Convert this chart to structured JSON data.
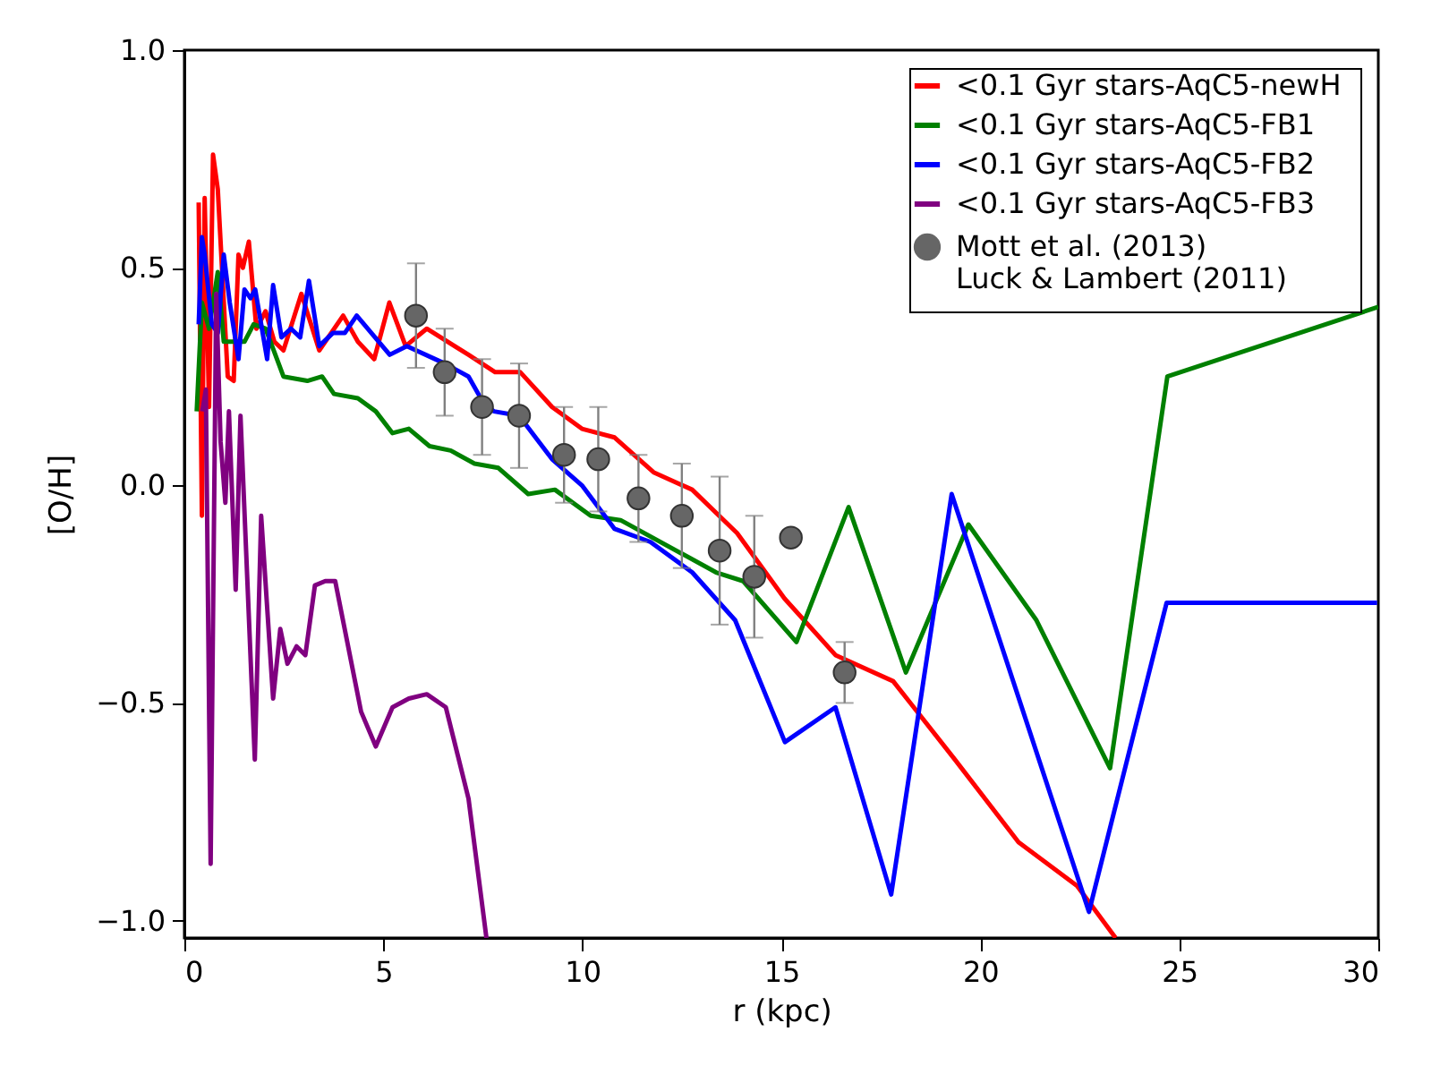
{
  "chart_data": {
    "type": "line",
    "xlabel": "r (kpc)",
    "ylabel": "[O/H]",
    "xlim": [
      0,
      30
    ],
    "ylim": [
      -1.04,
      1.0
    ],
    "xticks": [
      0,
      5,
      10,
      15,
      20,
      25,
      30
    ],
    "yticks": [
      {
        "value": -1.0,
        "label": "−1.0"
      },
      {
        "value": -0.5,
        "label": "−0.5"
      },
      {
        "value": 0.0,
        "label": "0.0"
      },
      {
        "value": 0.5,
        "label": "0.5"
      },
      {
        "value": 1.0,
        "label": "1.0"
      }
    ],
    "legend": "top right",
    "series": [
      {
        "name": "<0.1 Gyr stars-AqC5-newH",
        "color": "#ff0000",
        "x": [
          0.36,
          0.44,
          0.51,
          0.62,
          0.72,
          0.84,
          1.09,
          1.24,
          1.36,
          1.47,
          1.62,
          1.81,
          2.04,
          2.26,
          2.49,
          2.94,
          3.39,
          3.99,
          4.36,
          4.77,
          5.15,
          5.56,
          6.09,
          7.14,
          7.81,
          8.44,
          9.24,
          9.99,
          10.81,
          11.79,
          12.76,
          13.89,
          15.08,
          16.36,
          17.81,
          19.36,
          20.96,
          22.43,
          23.4
        ],
        "values": [
          0.65,
          -0.07,
          0.66,
          0.18,
          0.76,
          0.68,
          0.25,
          0.24,
          0.53,
          0.5,
          0.56,
          0.36,
          0.4,
          0.33,
          0.31,
          0.44,
          0.31,
          0.39,
          0.33,
          0.29,
          0.42,
          0.32,
          0.36,
          0.3,
          0.26,
          0.26,
          0.18,
          0.13,
          0.11,
          0.03,
          -0.01,
          -0.11,
          -0.26,
          -0.39,
          -0.45,
          -0.63,
          -0.82,
          -0.92,
          -1.04
        ]
      },
      {
        "name": "<0.1 Gyr stars-AqC5-FB1",
        "color": "#008000",
        "x": [
          0.31,
          0.44,
          0.62,
          0.84,
          0.99,
          1.51,
          1.74,
          2.04,
          2.49,
          3.09,
          3.46,
          3.76,
          4.36,
          4.81,
          5.23,
          5.64,
          6.16,
          6.69,
          7.29,
          7.89,
          8.64,
          9.31,
          10.21,
          10.96,
          13.36,
          14.04,
          15.38,
          16.69,
          18.13,
          19.7,
          21.41,
          23.26,
          24.7,
          25.3,
          30
        ],
        "values": [
          0.17,
          0.42,
          0.36,
          0.49,
          0.33,
          0.33,
          0.37,
          0.36,
          0.25,
          0.24,
          0.25,
          0.21,
          0.2,
          0.17,
          0.12,
          0.13,
          0.09,
          0.08,
          0.05,
          0.04,
          -0.02,
          -0.01,
          -0.07,
          -0.08,
          -0.2,
          -0.22,
          -0.36,
          -0.05,
          -0.43,
          -0.09,
          -0.31,
          -0.65,
          0.25,
          null,
          0.41
        ]
      },
      {
        "name": "<0.1 Gyr stars-AqC5-FB2",
        "color": "#0000ff",
        "x": [
          0.36,
          0.44,
          0.51,
          0.69,
          0.84,
          0.99,
          1.14,
          1.36,
          1.51,
          1.66,
          1.78,
          2.08,
          2.23,
          2.44,
          2.68,
          2.91,
          3.13,
          3.39,
          3.73,
          4.03,
          4.33,
          5.16,
          5.59,
          6.54,
          7.14,
          7.51,
          7.78,
          8.41,
          9.24,
          9.99,
          10.81,
          11.71,
          12.76,
          13.84,
          15.09,
          16.36,
          17.76,
          19.28,
          22.73,
          24.68,
          29.97
        ],
        "values": [
          0.37,
          0.57,
          0.53,
          0.37,
          0.35,
          0.53,
          0.42,
          0.29,
          0.45,
          0.43,
          0.45,
          0.29,
          0.46,
          0.34,
          0.36,
          0.34,
          0.47,
          0.32,
          0.35,
          0.35,
          0.39,
          0.3,
          0.32,
          0.28,
          0.25,
          0.19,
          0.17,
          0.16,
          0.06,
          0.0,
          -0.1,
          -0.13,
          -0.2,
          -0.31,
          -0.59,
          -0.51,
          -0.94,
          -0.02,
          -0.98,
          -0.27,
          -0.27
        ]
      },
      {
        "name": "<0.1 Gyr stars-AqC5-FB3",
        "color": "#800080",
        "x": [
          0.45,
          0.54,
          0.66,
          0.8,
          0.91,
          1.03,
          1.12,
          1.29,
          1.41,
          1.77,
          1.93,
          2.23,
          2.41,
          2.59,
          2.82,
          3.04,
          3.28,
          3.54,
          3.79,
          4.44,
          4.81,
          5.23,
          5.64,
          6.09,
          6.57,
          7.14,
          7.59
        ],
        "values": [
          0.17,
          0.22,
          -0.87,
          0.44,
          0.1,
          -0.04,
          0.17,
          -0.24,
          0.16,
          -0.63,
          -0.07,
          -0.49,
          -0.33,
          -0.41,
          -0.37,
          -0.39,
          -0.23,
          -0.22,
          -0.22,
          -0.52,
          -0.6,
          -0.51,
          -0.49,
          -0.48,
          -0.51,
          -0.72,
          -1.04
        ]
      },
      {
        "name": "Mott et al. (2013)\nLuck & Lambert (2011)",
        "type": "scatter",
        "marker": "circle",
        "color": "#666666",
        "x": [
          5.82,
          6.54,
          7.48,
          8.41,
          9.54,
          10.4,
          11.41,
          12.5,
          13.45,
          14.32,
          15.24,
          16.59
        ],
        "values": [
          0.39,
          0.26,
          0.18,
          0.16,
          0.07,
          0.06,
          -0.03,
          -0.07,
          -0.15,
          -0.21,
          -0.12,
          -0.43
        ],
        "errors": [
          0.12,
          0.1,
          0.11,
          0.12,
          0.11,
          0.12,
          0.1,
          0.12,
          0.17,
          0.14,
          null,
          0.07
        ]
      }
    ]
  }
}
